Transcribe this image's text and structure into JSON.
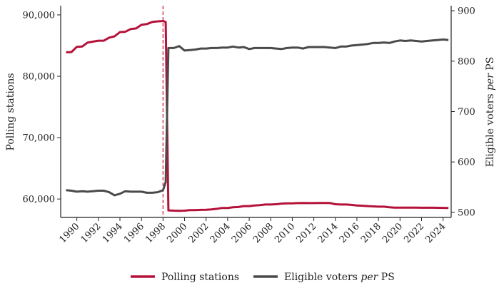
{
  "chart_data": {
    "type": "line",
    "title": "",
    "xlabel": "",
    "ylabel_left": "Polling stations",
    "ylabel_right_parts": [
      {
        "text": "Eligible voters ",
        "italic": false
      },
      {
        "text": "per",
        "italic": true
      },
      {
        "text": " PS",
        "italic": false
      }
    ],
    "x_ticks": [
      "1990",
      "1992",
      "1994",
      "1996",
      "1998",
      "2000",
      "2002",
      "2004",
      "2006",
      "2008",
      "2010",
      "2012",
      "2014",
      "2016",
      "2018",
      "2020",
      "2022",
      "2024"
    ],
    "xlim": [
      1988.5,
      2024.75
    ],
    "ylim_left": [
      57000,
      91500
    ],
    "ylim_right": [
      490,
      910
    ],
    "yticks_left": [
      "60,000",
      "70,000",
      "80,000",
      "90,000"
    ],
    "yticks_right": [
      "500",
      "600",
      "700",
      "800",
      "900"
    ],
    "reference_line": {
      "x": 1998.0,
      "color": "#c8102e",
      "style": "dashed"
    },
    "legend": {
      "position": "bottom"
    },
    "series": [
      {
        "name": "Polling stations",
        "axis": "left",
        "color": "#b5123a",
        "points": [
          [
            1989.0,
            83900
          ],
          [
            1989.5,
            83950
          ],
          [
            1990.0,
            84800
          ],
          [
            1990.5,
            84850
          ],
          [
            1991.0,
            85500
          ],
          [
            1991.5,
            85650
          ],
          [
            1992.0,
            85800
          ],
          [
            1992.5,
            85800
          ],
          [
            1993.0,
            86300
          ],
          [
            1993.5,
            86500
          ],
          [
            1994.0,
            87200
          ],
          [
            1994.5,
            87250
          ],
          [
            1995.0,
            87700
          ],
          [
            1995.5,
            87800
          ],
          [
            1996.0,
            88400
          ],
          [
            1996.5,
            88500
          ],
          [
            1997.0,
            88850
          ],
          [
            1997.5,
            88950
          ],
          [
            1998.0,
            89000
          ],
          [
            1998.25,
            88850
          ],
          [
            1998.5,
            58150
          ],
          [
            1999.0,
            58100
          ],
          [
            1999.5,
            58080
          ],
          [
            2000.0,
            58100
          ],
          [
            2000.5,
            58200
          ],
          [
            2001.0,
            58200
          ],
          [
            2001.5,
            58230
          ],
          [
            2002.0,
            58250
          ],
          [
            2002.5,
            58300
          ],
          [
            2003.0,
            58400
          ],
          [
            2003.5,
            58550
          ],
          [
            2004.0,
            58550
          ],
          [
            2004.5,
            58650
          ],
          [
            2005.0,
            58700
          ],
          [
            2005.5,
            58850
          ],
          [
            2006.0,
            58850
          ],
          [
            2006.5,
            58950
          ],
          [
            2007.0,
            59000
          ],
          [
            2007.5,
            59100
          ],
          [
            2008.0,
            59100
          ],
          [
            2008.5,
            59150
          ],
          [
            2009.0,
            59250
          ],
          [
            2009.5,
            59300
          ],
          [
            2010.0,
            59300
          ],
          [
            2010.5,
            59330
          ],
          [
            2011.0,
            59350
          ],
          [
            2011.5,
            59330
          ],
          [
            2012.0,
            59330
          ],
          [
            2012.5,
            59350
          ],
          [
            2013.0,
            59350
          ],
          [
            2013.5,
            59350
          ],
          [
            2014.0,
            59150
          ],
          [
            2014.5,
            59100
          ],
          [
            2015.0,
            59100
          ],
          [
            2015.5,
            59050
          ],
          [
            2016.0,
            58950
          ],
          [
            2016.5,
            58900
          ],
          [
            2017.0,
            58850
          ],
          [
            2017.5,
            58800
          ],
          [
            2018.0,
            58750
          ],
          [
            2018.5,
            58750
          ],
          [
            2019.0,
            58650
          ],
          [
            2019.5,
            58600
          ],
          [
            2020.0,
            58600
          ],
          [
            2020.5,
            58600
          ],
          [
            2021.0,
            58600
          ],
          [
            2021.5,
            58600
          ],
          [
            2022.0,
            58580
          ],
          [
            2022.5,
            58580
          ],
          [
            2023.0,
            58580
          ],
          [
            2023.5,
            58570
          ],
          [
            2024.0,
            58560
          ],
          [
            2024.5,
            58550
          ]
        ]
      },
      {
        "name": "Eligible voters per PS",
        "name_parts": [
          {
            "text": "Eligible voters ",
            "italic": false
          },
          {
            "text": "per",
            "italic": true
          },
          {
            "text": " PS",
            "italic": false
          }
        ],
        "axis": "right",
        "color": "#4a4a4a",
        "points": [
          [
            1989.0,
            544
          ],
          [
            1989.5,
            543
          ],
          [
            1990.0,
            541
          ],
          [
            1990.5,
            542
          ],
          [
            1991.0,
            541
          ],
          [
            1991.5,
            542
          ],
          [
            1992.0,
            543
          ],
          [
            1992.5,
            543
          ],
          [
            1993.0,
            540
          ],
          [
            1993.5,
            534
          ],
          [
            1994.0,
            537
          ],
          [
            1994.5,
            542
          ],
          [
            1995.0,
            541
          ],
          [
            1995.5,
            541
          ],
          [
            1996.0,
            541
          ],
          [
            1996.5,
            539
          ],
          [
            1997.0,
            539
          ],
          [
            1997.5,
            540
          ],
          [
            1998.0,
            544
          ],
          [
            1998.25,
            560
          ],
          [
            1998.5,
            826
          ],
          [
            1999.0,
            826
          ],
          [
            1999.5,
            830
          ],
          [
            2000.0,
            821
          ],
          [
            2000.5,
            822
          ],
          [
            2001.0,
            823
          ],
          [
            2001.5,
            825
          ],
          [
            2002.0,
            825
          ],
          [
            2002.5,
            826
          ],
          [
            2003.0,
            826
          ],
          [
            2003.5,
            827
          ],
          [
            2004.0,
            827
          ],
          [
            2004.5,
            829
          ],
          [
            2005.0,
            827
          ],
          [
            2005.5,
            828
          ],
          [
            2006.0,
            824
          ],
          [
            2006.5,
            826
          ],
          [
            2007.0,
            826
          ],
          [
            2007.5,
            826
          ],
          [
            2008.0,
            826
          ],
          [
            2008.5,
            825
          ],
          [
            2009.0,
            824
          ],
          [
            2009.5,
            826
          ],
          [
            2010.0,
            827
          ],
          [
            2010.5,
            827
          ],
          [
            2011.0,
            825
          ],
          [
            2011.5,
            828
          ],
          [
            2012.0,
            828
          ],
          [
            2012.5,
            828
          ],
          [
            2013.0,
            828
          ],
          [
            2013.5,
            827
          ],
          [
            2014.0,
            826
          ],
          [
            2014.5,
            829
          ],
          [
            2015.0,
            829
          ],
          [
            2015.5,
            831
          ],
          [
            2016.0,
            832
          ],
          [
            2016.5,
            833
          ],
          [
            2017.0,
            834
          ],
          [
            2017.5,
            836
          ],
          [
            2018.0,
            836
          ],
          [
            2018.5,
            837
          ],
          [
            2019.0,
            836
          ],
          [
            2019.5,
            839
          ],
          [
            2020.0,
            841
          ],
          [
            2020.5,
            840
          ],
          [
            2021.0,
            841
          ],
          [
            2021.5,
            840
          ],
          [
            2022.0,
            839
          ],
          [
            2022.5,
            840
          ],
          [
            2023.0,
            841
          ],
          [
            2023.5,
            842
          ],
          [
            2024.0,
            843
          ],
          [
            2024.5,
            842
          ]
        ]
      }
    ]
  }
}
